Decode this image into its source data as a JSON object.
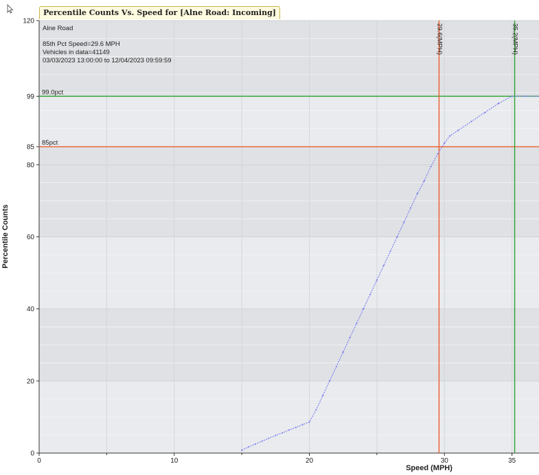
{
  "tab_title": "Percentile Counts Vs. Speed for [Alne Road: Incoming]",
  "info": {
    "site": "Alne Road",
    "pct85_speed": "85th Pct Speed=29.6 MPH",
    "vehicles": "Vehicles in data=41149",
    "date_range": "03/03/2023 13:00:00 to 12/04/2023 09:59:59"
  },
  "colors": {
    "series": "#7b7ff0",
    "pct85_line": "#ef5a2a",
    "pct99_line": "#2ea02e",
    "plot_band_light": "#e9ebee",
    "plot_band_dark": "#dfe1e4"
  },
  "chart_data": {
    "type": "line",
    "title": "Percentile Counts Vs. Speed for [Alne Road: Incoming]",
    "xlabel": "Speed (MPH)",
    "ylabel": "Percentile Counts",
    "xlim": [
      0,
      37
    ],
    "ylim": [
      0,
      120
    ],
    "x_ticks": [
      0,
      10,
      20,
      30,
      35
    ],
    "y_ticks": [
      0,
      20,
      40,
      60,
      80,
      85,
      99,
      120
    ],
    "grid": true,
    "series": [
      {
        "x": [
          15,
          15.5,
          16,
          16.5,
          17,
          17.5,
          18,
          18.5,
          19,
          19.5,
          20,
          20.5,
          21,
          21.5,
          22,
          22.5,
          23,
          23.5,
          24,
          24.5,
          25,
          25.5,
          26,
          26.5,
          27,
          27.5,
          28,
          28.5,
          29,
          29.5,
          30,
          30.4,
          31,
          32,
          33,
          34,
          35,
          36,
          37
        ],
        "y": [
          0.8,
          1.7,
          2.5,
          3.3,
          4.1,
          4.9,
          5.6,
          6.4,
          7.1,
          7.9,
          8.6,
          12,
          16,
          20,
          24,
          28,
          32,
          36,
          40,
          44,
          48,
          52,
          56,
          60,
          64,
          68,
          72,
          75.5,
          79.5,
          83,
          86,
          88,
          89.5,
          92,
          94.5,
          97,
          99,
          99,
          99
        ]
      }
    ],
    "reference_lines": [
      {
        "axis": "y",
        "value": 99,
        "label": "99.0pct"
      },
      {
        "axis": "y",
        "value": 85,
        "label": "85pct"
      },
      {
        "axis": "x",
        "value": 29.6,
        "label": "29.6(MPH)"
      },
      {
        "axis": "x",
        "value": 35.2,
        "label": "35.2(MPH)"
      }
    ]
  }
}
